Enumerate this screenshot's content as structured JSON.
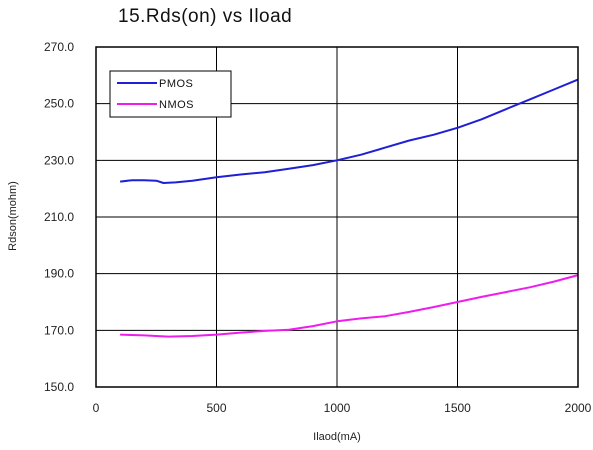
{
  "chart_data": {
    "type": "line",
    "title": "15.Rds(on) vs Iload",
    "xlabel": "Ilaod(mA)",
    "ylabel": "Rdson(mohm)",
    "xlim": [
      0,
      2000
    ],
    "ylim": [
      150,
      270
    ],
    "x_ticks": [
      0,
      500,
      1000,
      1500,
      2000
    ],
    "y_ticks": [
      150.0,
      170.0,
      190.0,
      210.0,
      230.0,
      250.0,
      270.0
    ],
    "x_tick_labels": [
      "0",
      "500",
      "1000",
      "1500",
      "2000"
    ],
    "y_tick_labels": [
      "150.0",
      "170.0",
      "190.0",
      "210.0",
      "230.0",
      "250.0",
      "270.0"
    ],
    "grid": true,
    "legend_position": "top-left",
    "series": [
      {
        "name": "PMOS",
        "color": "#1f1fd6",
        "points": [
          [
            100,
            222.5
          ],
          [
            150,
            223.0
          ],
          [
            200,
            223.0
          ],
          [
            250,
            222.8
          ],
          [
            280,
            222.0
          ],
          [
            330,
            222.2
          ],
          [
            400,
            222.8
          ],
          [
            500,
            224.0
          ],
          [
            600,
            225.0
          ],
          [
            700,
            225.8
          ],
          [
            800,
            227.0
          ],
          [
            900,
            228.3
          ],
          [
            1000,
            230.0
          ],
          [
            1100,
            232.0
          ],
          [
            1200,
            234.5
          ],
          [
            1300,
            237.0
          ],
          [
            1400,
            239.0
          ],
          [
            1500,
            241.5
          ],
          [
            1600,
            244.5
          ],
          [
            1700,
            248.0
          ],
          [
            1800,
            251.5
          ],
          [
            1900,
            255.0
          ],
          [
            2000,
            258.5
          ]
        ]
      },
      {
        "name": "NMOS",
        "color": "#ee1cee",
        "points": [
          [
            100,
            168.5
          ],
          [
            200,
            168.2
          ],
          [
            300,
            167.8
          ],
          [
            400,
            168.0
          ],
          [
            500,
            168.5
          ],
          [
            600,
            169.2
          ],
          [
            700,
            169.8
          ],
          [
            800,
            170.2
          ],
          [
            900,
            171.5
          ],
          [
            1000,
            173.2
          ],
          [
            1100,
            174.2
          ],
          [
            1200,
            175.0
          ],
          [
            1300,
            176.5
          ],
          [
            1400,
            178.2
          ],
          [
            1500,
            180.0
          ],
          [
            1600,
            181.8
          ],
          [
            1700,
            183.5
          ],
          [
            1800,
            185.2
          ],
          [
            1900,
            187.2
          ],
          [
            2000,
            189.5
          ]
        ]
      }
    ]
  }
}
